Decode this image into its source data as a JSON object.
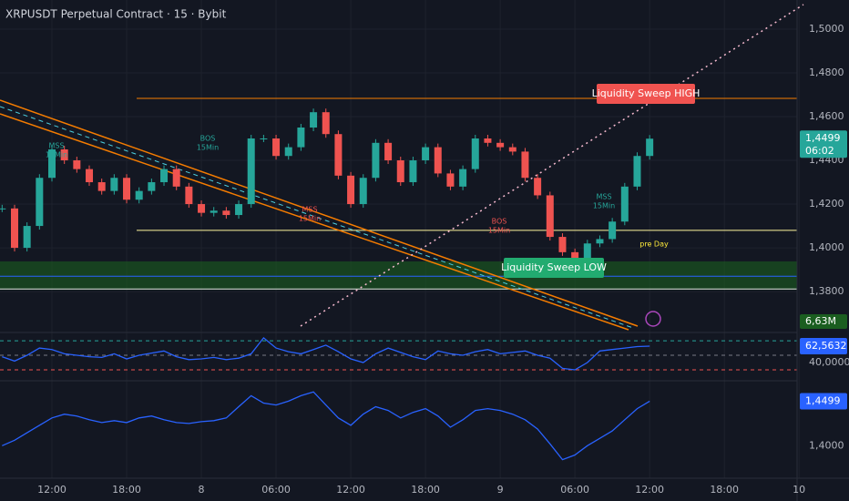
{
  "chart_data": {
    "type": "candlestick",
    "title": "XRPUSDT Perpetual Contract · 15 · Bybit",
    "x": [
      -4,
      -3,
      -2,
      -1,
      0,
      1,
      2,
      3,
      4,
      5,
      6,
      7,
      8,
      9,
      10,
      11,
      12,
      13,
      14,
      15,
      16,
      17,
      18,
      19,
      20,
      21,
      22,
      23,
      24,
      25,
      26,
      27,
      28,
      29,
      30,
      31,
      32,
      33,
      34,
      35,
      36,
      37,
      38,
      39,
      40,
      41,
      42,
      43,
      44,
      45,
      46,
      47,
      48
    ],
    "values": [
      1.418,
      1.4,
      1.41,
      1.432,
      1.445,
      1.44,
      1.436,
      1.43,
      1.426,
      1.432,
      1.422,
      1.426,
      1.43,
      1.436,
      1.428,
      1.42,
      1.416,
      1.417,
      1.415,
      1.42,
      1.45,
      1.45,
      1.442,
      1.446,
      1.455,
      1.462,
      1.452,
      1.433,
      1.42,
      1.432,
      1.448,
      1.44,
      1.43,
      1.44,
      1.446,
      1.434,
      1.428,
      1.436,
      1.45,
      1.448,
      1.446,
      1.444,
      1.432,
      1.424,
      1.405,
      1.398,
      1.39,
      1.402,
      1.404,
      1.412,
      1.428,
      1.442,
      1.4499
    ],
    "up_color": "#26a69a",
    "down_color": "#ef5350",
    "xlim": [
      -4.17,
      59.84
    ],
    "xticks": [
      {
        "value": 0,
        "label": "12:00"
      },
      {
        "value": 6,
        "label": "18:00"
      },
      {
        "value": 12,
        "label": "8"
      },
      {
        "value": 18,
        "label": "06:00"
      },
      {
        "value": 24,
        "label": "12:00"
      },
      {
        "value": 30,
        "label": "18:00"
      },
      {
        "value": 36,
        "label": "9"
      },
      {
        "value": 42,
        "label": "06:00"
      },
      {
        "value": 48,
        "label": "12:00"
      },
      {
        "value": 54,
        "label": "18:00"
      },
      {
        "value": 60,
        "label": "10"
      }
    ],
    "ylim": [
      1.3613,
      1.5133
    ],
    "yticks": [
      {
        "value": 1.5,
        "label": "1,5000"
      },
      {
        "value": 1.48,
        "label": "1,4800"
      },
      {
        "value": 1.46,
        "label": "1,4600"
      },
      {
        "value": 1.44,
        "label": "1,4400"
      },
      {
        "value": 1.42,
        "label": "1,4200"
      },
      {
        "value": 1.4,
        "label": "1,4000"
      },
      {
        "value": 1.38,
        "label": "1,3800"
      }
    ],
    "grid": true,
    "last": {
      "value": 1.4499,
      "label": "1,4499"
    },
    "countdown": "06:02",
    "volume_label": "6,63M",
    "levels": [
      {
        "value": 1.4683,
        "color": "#f57c00"
      },
      {
        "value": 1.408,
        "color": "#fff59d"
      },
      {
        "value": 1.387,
        "color": "#2962ff"
      },
      {
        "value": 1.3812,
        "color": "#e0e0e0"
      }
    ],
    "zone": {
      "from": 1.3808,
      "to": 1.3938,
      "color": "#1b5e20"
    },
    "annotations": [
      {
        "lines": [
          "MSS",
          "15Min"
        ],
        "color": "#26a69a"
      },
      {
        "lines": [
          "BOS",
          "15Min"
        ],
        "color": "#26a69a"
      },
      {
        "lines": [
          "MSS",
          "15Min"
        ],
        "color": "#ef5350"
      },
      {
        "lines": [
          "BOS",
          "15Min"
        ],
        "color": "#ef5350"
      },
      {
        "lines": [
          "MSS",
          "15Min"
        ],
        "color": "#26a69a"
      },
      {
        "lines": [
          "pre Day"
        ],
        "color": "#ffeb3b"
      }
    ],
    "sweeps": [
      {
        "text": "Liquidity Sweep HIGH",
        "color": "#f05350"
      },
      {
        "text": "Liquidity Sweep LOW",
        "color": "#22ab70"
      }
    ],
    "rsi": {
      "values": [
        48,
        42,
        50,
        60,
        58,
        52,
        50,
        48,
        47,
        52,
        45,
        50,
        53,
        56,
        48,
        44,
        45,
        47,
        44,
        46,
        52,
        74,
        60,
        55,
        52,
        58,
        64,
        55,
        45,
        40,
        52,
        60,
        54,
        48,
        44,
        56,
        52,
        50,
        55,
        58,
        52,
        54,
        56,
        50,
        46,
        32,
        30,
        40,
        56,
        58,
        60,
        62,
        62.5632
      ],
      "color": "#2962ff",
      "ylim": [
        18.7,
        81.4
      ],
      "yticks": [
        {
          "value": 40,
          "label": "40,0000"
        }
      ],
      "levels": [
        {
          "value": 70,
          "color": "#26a69a"
        },
        {
          "value": 50,
          "color": "#787b86"
        },
        {
          "value": 30,
          "color": "#ef5350"
        }
      ],
      "last": {
        "value": 62.5632,
        "label": "62,5632"
      }
    },
    "lower": {
      "values": [
        1.4,
        1.4062,
        1.4145,
        1.4229,
        1.4312,
        1.4353,
        1.4333,
        1.4291,
        1.426,
        1.4281,
        1.426,
        1.4312,
        1.4333,
        1.4291,
        1.426,
        1.4249,
        1.427,
        1.4281,
        1.4312,
        1.4437,
        1.4561,
        1.4478,
        1.4457,
        1.4499,
        1.4561,
        1.4603,
        1.4457,
        1.4312,
        1.4229,
        1.4353,
        1.4437,
        1.4395,
        1.4312,
        1.4374,
        1.4416,
        1.4333,
        1.4208,
        1.4291,
        1.4395,
        1.4416,
        1.4395,
        1.4353,
        1.4291,
        1.4187,
        1.4021,
        1.3844,
        1.3896,
        1.4,
        1.4083,
        1.4166,
        1.4291,
        1.4416,
        1.4499
      ],
      "color": "#2962ff",
      "ylim": [
        1.3636,
        1.4728
      ],
      "yticks": [
        {
          "value": 1.4,
          "label": "1,4000"
        }
      ],
      "last": {
        "value": 1.4499,
        "label": "1,4499"
      }
    }
  }
}
